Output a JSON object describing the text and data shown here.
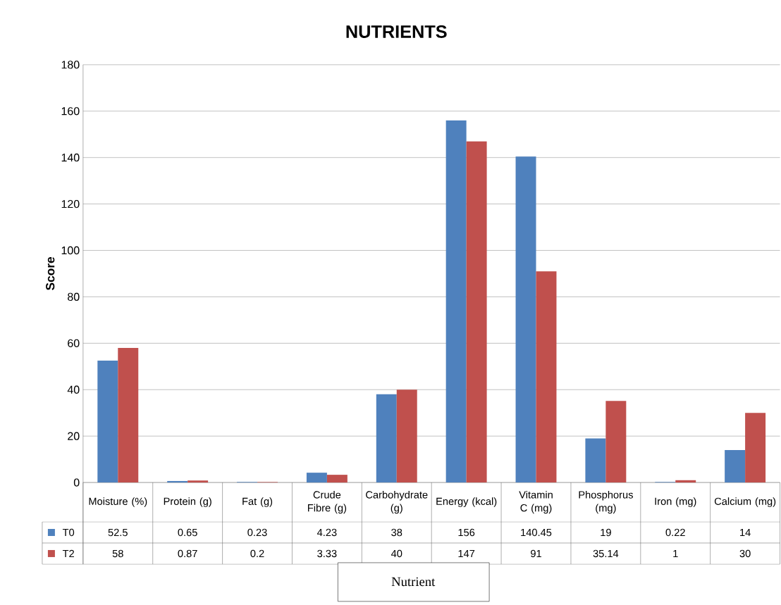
{
  "chart_data": {
    "type": "bar",
    "title": "NUTRIENTS",
    "xlabel": "Nutrient",
    "ylabel": "Score",
    "categories": [
      "Moisture (%)",
      "Protein (g)",
      "Fat (g)",
      "Crude Fibre (g)",
      "Carbohydrate (g)",
      "Energy (kcal)",
      "Vitamin C (mg)",
      "Phosphorus (mg)",
      "Iron (mg)",
      "Calcium (mg)"
    ],
    "series": [
      {
        "name": "T0",
        "color": "#4f81bd",
        "values": [
          52.5,
          0.65,
          0.23,
          4.23,
          38,
          156,
          140.45,
          19,
          0.22,
          14
        ]
      },
      {
        "name": "T2",
        "color": "#c0504d",
        "values": [
          58,
          0.87,
          0.2,
          3.33,
          40,
          147,
          91,
          35.14,
          1,
          30
        ]
      }
    ],
    "ylim": [
      0,
      180
    ],
    "yticks": [
      0,
      20,
      40,
      60,
      80,
      100,
      120,
      140,
      160,
      180
    ],
    "grid": "y",
    "legend": "bottom",
    "data_labels": true
  }
}
